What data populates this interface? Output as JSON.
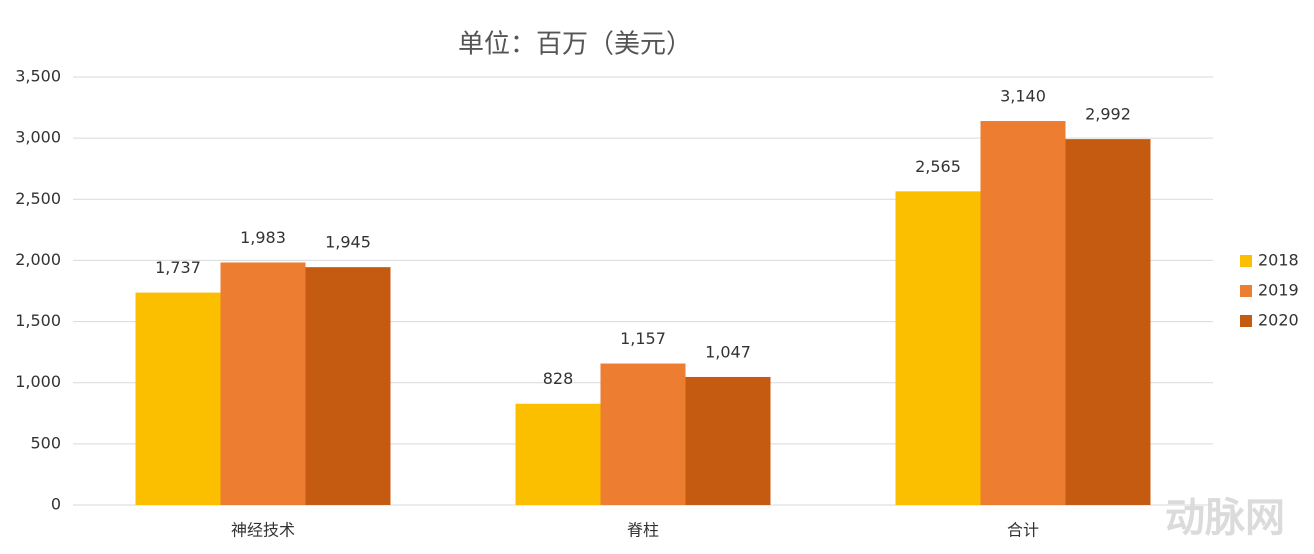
{
  "chart_data": {
    "type": "bar",
    "title": "单位：百万（美元）",
    "categories": [
      "神经技术",
      "脊柱",
      "合计"
    ],
    "series": [
      {
        "name": "2018",
        "color": "#fbbf00",
        "values": [
          1737,
          828,
          2565
        ],
        "value_labels": [
          "1,737",
          "828",
          "2,565"
        ]
      },
      {
        "name": "2019",
        "color": "#ed7d31",
        "values": [
          1983,
          1157,
          3140
        ],
        "value_labels": [
          "1,983",
          "1,157",
          "3,140"
        ]
      },
      {
        "name": "2020",
        "color": "#c55a11",
        "values": [
          1945,
          1047,
          2992
        ],
        "value_labels": [
          "1,945",
          "1,047",
          "2,992"
        ]
      }
    ],
    "ylim": [
      0,
      3500
    ],
    "yticks": [
      0,
      500,
      {
        "value": 1000,
        "label": "1,000"
      },
      {
        "value": 1500,
        "label": "1,500"
      },
      {
        "value": 2000,
        "label": "2,000"
      },
      {
        "value": 2500,
        "label": "2,500"
      },
      {
        "value": 3000,
        "label": "3,000"
      },
      {
        "value": 3500,
        "label": "3,500"
      }
    ],
    "grid": true,
    "legend": "right"
  },
  "watermark": "动脉网"
}
